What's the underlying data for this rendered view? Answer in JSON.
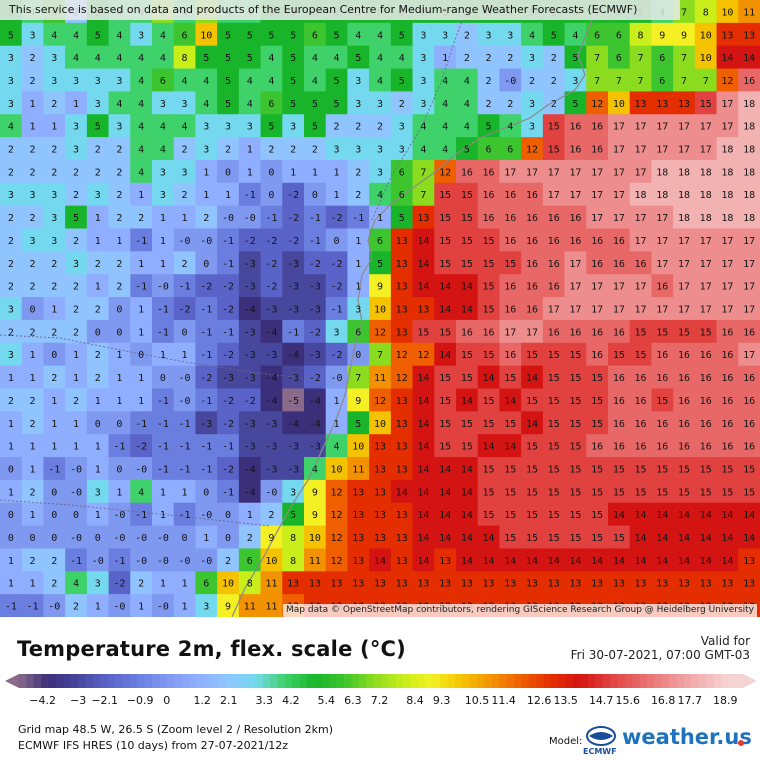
{
  "notice": "This service is based on data and products of the European Centre for Medium-range Weather Forecasts (ECMWF)",
  "attribution": "Map data © OpenStreetMap contributors, rendering GIScience Research Group @ Heidelberg University",
  "title": "Temperature 2m, flex. scale (°C)",
  "valid_label": "Valid for",
  "valid_time": "Fri 30-07-2021, 07:00 GMT-03",
  "legend": {
    "ticks": [
      "-4.2",
      "-3",
      "-2.1",
      "-0.9",
      "0",
      "1.2",
      "2.1",
      "3.3",
      "4.2",
      "5.4",
      "6.3",
      "7.2",
      "8.4",
      "9.3",
      "10.5",
      "11.4",
      "12.6",
      "13.5",
      "14.7",
      "15.6",
      "16.8",
      "17.7",
      "18.9"
    ]
  },
  "info_line_1": "Grid map 48.5 W, 26.5 S (Zoom level 2 / Resolution 2km)",
  "info_line_2": "ECMWF IFS HRES (10 days) from 27-07-2021/12z",
  "model_label": "Model:",
  "ecmwf_label": "ECMWF",
  "brand": "weather.us",
  "grid_values": [
    [
      "5",
      "4",
      "6",
      "2",
      "5",
      "4",
      "4",
      "7",
      "4",
      "7",
      "4",
      "4",
      "5",
      "5",
      "5",
      "5",
      "5",
      "5",
      "5",
      "5",
      "5",
      "5",
      "5",
      "5",
      "5",
      "5",
      "5",
      "5",
      "5",
      "5",
      "4",
      "7",
      "8",
      "10",
      "11"
    ],
    [
      "5",
      "3",
      "4",
      "4",
      "5",
      "4",
      "3",
      "4",
      "6",
      "10",
      "5",
      "5",
      "5",
      "5",
      "6",
      "5",
      "4",
      "4",
      "5",
      "3",
      "3",
      "2",
      "3",
      "3",
      "4",
      "5",
      "4",
      "6",
      "6",
      "8",
      "9",
      "9",
      "10",
      "13",
      "13"
    ],
    [
      "3",
      "2",
      "3",
      "4",
      "4",
      "4",
      "4",
      "4",
      "8",
      "5",
      "5",
      "5",
      "4",
      "5",
      "4",
      "4",
      "5",
      "4",
      "4",
      "3",
      "1",
      "2",
      "2",
      "2",
      "3",
      "2",
      "5",
      "7",
      "6",
      "7",
      "6",
      "7",
      "10",
      "14",
      "14"
    ],
    [
      "3",
      "2",
      "3",
      "3",
      "3",
      "3",
      "4",
      "6",
      "4",
      "4",
      "5",
      "4",
      "4",
      "5",
      "4",
      "5",
      "3",
      "4",
      "5",
      "3",
      "4",
      "4",
      "2",
      "-0",
      "2",
      "2",
      "3",
      "7",
      "7",
      "7",
      "6",
      "7",
      "7",
      "12",
      "16"
    ],
    [
      "3",
      "1",
      "2",
      "1",
      "3",
      "4",
      "4",
      "3",
      "3",
      "4",
      "5",
      "4",
      "6",
      "5",
      "5",
      "5",
      "3",
      "3",
      "2",
      "3",
      "4",
      "4",
      "2",
      "2",
      "3",
      "2",
      "5",
      "12",
      "10",
      "13",
      "13",
      "13",
      "15",
      "17",
      "18"
    ],
    [
      "4",
      "1",
      "1",
      "3",
      "5",
      "3",
      "4",
      "4",
      "4",
      "3",
      "3",
      "3",
      "5",
      "3",
      "5",
      "2",
      "2",
      "2",
      "3",
      "4",
      "4",
      "4",
      "5",
      "4",
      "3",
      "15",
      "16",
      "16",
      "17",
      "17",
      "17",
      "17",
      "17",
      "17",
      "18"
    ],
    [
      "2",
      "2",
      "2",
      "3",
      "2",
      "2",
      "4",
      "4",
      "2",
      "3",
      "2",
      "1",
      "2",
      "2",
      "2",
      "3",
      "3",
      "3",
      "3",
      "4",
      "4",
      "5",
      "6",
      "6",
      "12",
      "15",
      "16",
      "16",
      "17",
      "17",
      "17",
      "17",
      "17",
      "18",
      "18"
    ],
    [
      "2",
      "2",
      "2",
      "2",
      "2",
      "2",
      "4",
      "3",
      "3",
      "1",
      "0",
      "1",
      "0",
      "1",
      "1",
      "1",
      "2",
      "3",
      "6",
      "7",
      "12",
      "16",
      "16",
      "17",
      "17",
      "17",
      "17",
      "17",
      "17",
      "17",
      "18",
      "18",
      "18",
      "18",
      "18"
    ],
    [
      "3",
      "3",
      "3",
      "2",
      "3",
      "2",
      "1",
      "3",
      "2",
      "1",
      "1",
      "-1",
      "0",
      "-2",
      "0",
      "1",
      "2",
      "4",
      "6",
      "7",
      "15",
      "15",
      "16",
      "16",
      "16",
      "17",
      "17",
      "17",
      "17",
      "18",
      "18",
      "18",
      "18",
      "18",
      "18"
    ],
    [
      "2",
      "2",
      "3",
      "5",
      "1",
      "2",
      "2",
      "1",
      "1",
      "2",
      "-0",
      "-0",
      "-1",
      "-2",
      "-1",
      "-2",
      "-1",
      "1",
      "5",
      "13",
      "15",
      "15",
      "16",
      "16",
      "16",
      "16",
      "16",
      "17",
      "17",
      "17",
      "17",
      "18",
      "18",
      "18",
      "18"
    ],
    [
      "2",
      "3",
      "3",
      "2",
      "1",
      "1",
      "-1",
      "1",
      "-0",
      "-0",
      "-1",
      "-2",
      "-2",
      "-2",
      "-1",
      "0",
      "1",
      "6",
      "13",
      "14",
      "15",
      "15",
      "15",
      "16",
      "16",
      "16",
      "16",
      "16",
      "16",
      "17",
      "17",
      "17",
      "17",
      "17",
      "17"
    ],
    [
      "2",
      "2",
      "2",
      "3",
      "2",
      "2",
      "1",
      "1",
      "2",
      "0",
      "-1",
      "-3",
      "-2",
      "-3",
      "-2",
      "-2",
      "1",
      "5",
      "13",
      "14",
      "15",
      "15",
      "15",
      "15",
      "16",
      "16",
      "17",
      "16",
      "16",
      "16",
      "17",
      "17",
      "17",
      "17",
      "17"
    ],
    [
      "2",
      "2",
      "2",
      "2",
      "1",
      "2",
      "-1",
      "-0",
      "-1",
      "-2",
      "-2",
      "-3",
      "-2",
      "-3",
      "-3",
      "-2",
      "1",
      "9",
      "13",
      "14",
      "14",
      "14",
      "15",
      "16",
      "16",
      "16",
      "17",
      "17",
      "17",
      "17",
      "16",
      "17",
      "17",
      "17",
      "17"
    ],
    [
      "3",
      "0",
      "1",
      "2",
      "2",
      "0",
      "1",
      "-1",
      "-2",
      "-1",
      "-2",
      "-4",
      "-3",
      "-3",
      "-3",
      "-1",
      "3",
      "10",
      "13",
      "13",
      "14",
      "14",
      "15",
      "16",
      "16",
      "17",
      "17",
      "17",
      "17",
      "17",
      "17",
      "17",
      "17",
      "17",
      "17"
    ],
    [
      "2",
      "2",
      "2",
      "2",
      "0",
      "0",
      "1",
      "-1",
      "0",
      "-1",
      "-1",
      "-3",
      "-4",
      "-1",
      "-2",
      "3",
      "6",
      "12",
      "13",
      "15",
      "15",
      "16",
      "16",
      "17",
      "17",
      "16",
      "16",
      "16",
      "16",
      "15",
      "15",
      "15",
      "15",
      "16",
      "16"
    ],
    [
      "3",
      "1",
      "0",
      "1",
      "2",
      "1",
      "0",
      "1",
      "1",
      "-1",
      "-2",
      "-3",
      "-3",
      "-4",
      "-3",
      "-2",
      "0",
      "7",
      "12",
      "12",
      "14",
      "15",
      "15",
      "16",
      "15",
      "15",
      "15",
      "16",
      "15",
      "15",
      "16",
      "16",
      "16",
      "16",
      "17"
    ],
    [
      "1",
      "1",
      "2",
      "1",
      "2",
      "1",
      "1",
      "0",
      "-0",
      "-2",
      "-3",
      "-3",
      "-4",
      "-3",
      "-2",
      "-0",
      "7",
      "11",
      "12",
      "14",
      "15",
      "15",
      "14",
      "15",
      "14",
      "15",
      "15",
      "15",
      "16",
      "16",
      "16",
      "16",
      "16",
      "16",
      "16"
    ],
    [
      "2",
      "2",
      "1",
      "2",
      "1",
      "1",
      "1",
      "-1",
      "-0",
      "-1",
      "-2",
      "-2",
      "-4",
      "-5",
      "-4",
      "1",
      "9",
      "12",
      "13",
      "14",
      "15",
      "14",
      "15",
      "14",
      "15",
      "15",
      "15",
      "15",
      "16",
      "16",
      "15",
      "16",
      "16",
      "16",
      "16"
    ],
    [
      "1",
      "2",
      "1",
      "1",
      "0",
      "0",
      "-1",
      "-1",
      "-1",
      "-3",
      "-2",
      "-3",
      "-3",
      "-4",
      "-4",
      "1",
      "5",
      "10",
      "13",
      "14",
      "15",
      "15",
      "15",
      "15",
      "14",
      "15",
      "15",
      "15",
      "16",
      "16",
      "16",
      "16",
      "16",
      "16",
      "16"
    ],
    [
      "1",
      "1",
      "1",
      "1",
      "1",
      "-1",
      "-2",
      "-1",
      "-1",
      "-1",
      "-1",
      "-3",
      "-3",
      "-3",
      "-3",
      "4",
      "10",
      "13",
      "13",
      "14",
      "15",
      "15",
      "14",
      "14",
      "15",
      "15",
      "15",
      "16",
      "16",
      "16",
      "16",
      "16",
      "16",
      "16",
      "16"
    ],
    [
      "0",
      "1",
      "-1",
      "-0",
      "1",
      "0",
      "-0",
      "-1",
      "-1",
      "-1",
      "-2",
      "-4",
      "-3",
      "-3",
      "4",
      "10",
      "11",
      "13",
      "13",
      "14",
      "14",
      "14",
      "15",
      "15",
      "15",
      "15",
      "15",
      "15",
      "15",
      "15",
      "15",
      "15",
      "15",
      "15",
      "15"
    ],
    [
      "1",
      "2",
      "0",
      "-0",
      "3",
      "1",
      "4",
      "1",
      "1",
      "0",
      "-1",
      "-4",
      "-0",
      "3",
      "9",
      "12",
      "13",
      "13",
      "14",
      "14",
      "14",
      "14",
      "15",
      "15",
      "15",
      "15",
      "15",
      "15",
      "15",
      "15",
      "15",
      "15",
      "15",
      "15",
      "15"
    ],
    [
      "0",
      "1",
      "0",
      "0",
      "1",
      "-0",
      "-1",
      "1",
      "-1",
      "-0",
      "0",
      "1",
      "2",
      "5",
      "9",
      "12",
      "13",
      "13",
      "13",
      "14",
      "14",
      "14",
      "15",
      "15",
      "15",
      "15",
      "15",
      "15",
      "14",
      "14",
      "14",
      "14",
      "14",
      "14",
      "14"
    ],
    [
      "0",
      "0",
      "0",
      "-0",
      "0",
      "-0",
      "-0",
      "-0",
      "0",
      "1",
      "0",
      "2",
      "9",
      "8",
      "10",
      "12",
      "13",
      "13",
      "13",
      "14",
      "14",
      "14",
      "14",
      "15",
      "15",
      "15",
      "15",
      "15",
      "15",
      "14",
      "14",
      "14",
      "14",
      "14",
      "14"
    ],
    [
      "1",
      "2",
      "2",
      "-1",
      "-0",
      "-1",
      "-0",
      "-0",
      "-0",
      "-0",
      "2",
      "6",
      "10",
      "8",
      "11",
      "12",
      "13",
      "14",
      "13",
      "14",
      "13",
      "14",
      "14",
      "14",
      "14",
      "14",
      "14",
      "14",
      "14",
      "14",
      "14",
      "14",
      "14",
      "14",
      "13"
    ],
    [
      "1",
      "1",
      "2",
      "4",
      "3",
      "-2",
      "2",
      "1",
      "1",
      "6",
      "10",
      "8",
      "11",
      "13",
      "13",
      "13",
      "13",
      "13",
      "13",
      "13",
      "13",
      "13",
      "13",
      "13",
      "13",
      "13",
      "13",
      "13",
      "13",
      "13",
      "13",
      "13",
      "13",
      "13",
      "13"
    ],
    [
      "-1",
      "-1",
      "-0",
      "2",
      "1",
      "-0",
      "1",
      "-0",
      "1",
      "3",
      "9",
      "11",
      "11",
      "12",
      "13",
      "13",
      "13",
      "13",
      "13",
      "13",
      "13",
      "13",
      "13",
      "13",
      "13",
      "13",
      "13",
      "13",
      "13",
      "13",
      "13",
      "13",
      "13",
      "13",
      "13"
    ]
  ]
}
